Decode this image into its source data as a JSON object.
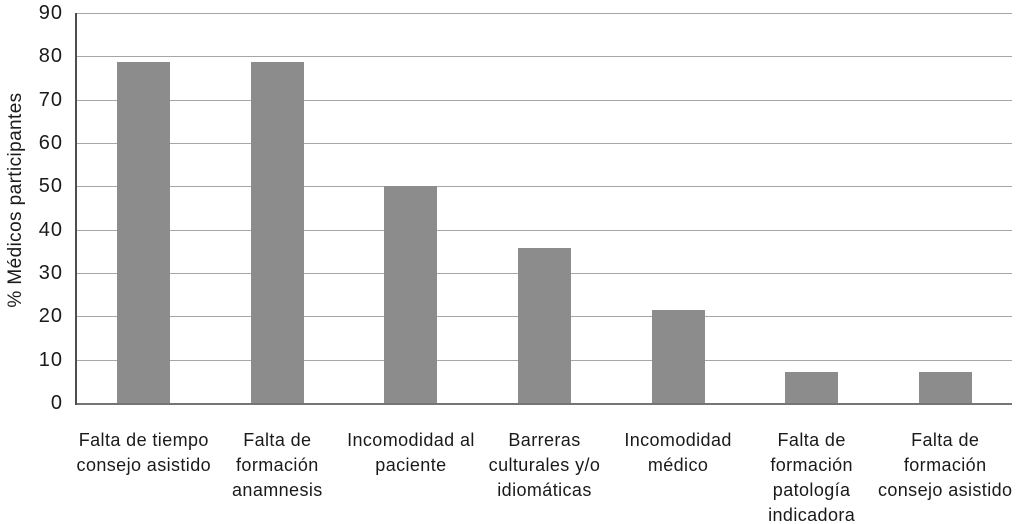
{
  "chart_data": {
    "type": "bar",
    "title": "",
    "xlabel": "",
    "ylabel": "% Médicos participantes",
    "categories": [
      "Falta de tiempo consejo asistido",
      "Falta de formación anamnesis",
      "Incomodidad al paciente",
      "Barreras culturales y/o idiomáticas",
      "Incomodidad médico",
      "Falta de formación patología indicadora",
      "Falta de formación consejo asistido"
    ],
    "values": [
      78.6,
      78.6,
      50,
      35.7,
      21.4,
      7.1,
      7.1
    ],
    "ylim": [
      0,
      90
    ],
    "ytick_step": 10,
    "ytick_labels": [
      "0",
      "10",
      "20",
      "30",
      "40",
      "50",
      "60",
      "70",
      "80",
      "90"
    ],
    "grid": "horizontal",
    "legend_position": "none",
    "bar_color": "#8c8c8c",
    "gridline_color": "#a6a6a6",
    "y_axis_color": "#4d4d4d",
    "x_axis_color": "#757575",
    "text_color": "#1a1a1a",
    "background_color": "#ffffff"
  }
}
